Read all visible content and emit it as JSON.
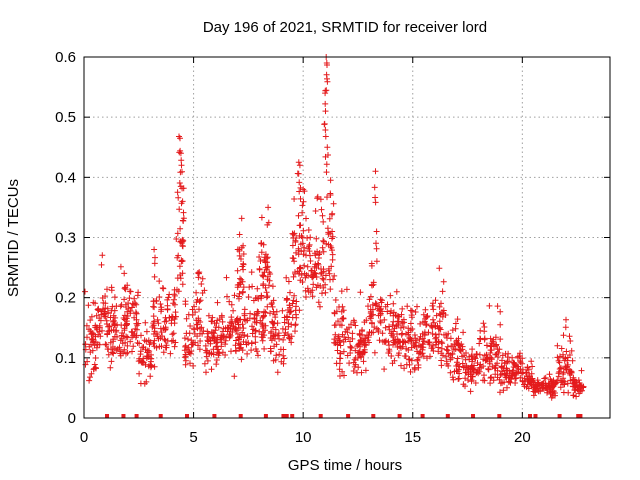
{
  "chart_data": {
    "type": "scatter",
    "title": "Day 196 of 2021, SRMTID for receiver lord",
    "xlabel": "GPS time / hours",
    "ylabel": "SRMTID / TECUs",
    "xlim": [
      0,
      24
    ],
    "ylim": [
      0,
      0.6
    ],
    "xticks": [
      "0",
      "5",
      "10",
      "15",
      "20"
    ],
    "yticks": [
      "0",
      "0.1",
      "0.2",
      "0.3",
      "0.4",
      "0.5",
      "0.6"
    ],
    "grid": true,
    "marker": "+",
    "color": "#e41a1c",
    "series": [
      {
        "name": "SRMTID",
        "segments": [
          {
            "t": [
              0.0,
              0.6
            ],
            "base": 0.12,
            "spread": 0.07
          },
          {
            "t": [
              0.5,
              1.1
            ],
            "base": 0.17,
            "spread": 0.07
          },
          {
            "t": [
              1.1,
              2.0
            ],
            "base": 0.14,
            "spread": 0.07
          },
          {
            "t": [
              1.8,
              2.5
            ],
            "base": 0.17,
            "spread": 0.07
          },
          {
            "t": [
              2.5,
              3.1
            ],
            "base": 0.1,
            "spread": 0.05
          },
          {
            "t": [
              3.1,
              3.6
            ],
            "base": 0.16,
            "spread": 0.09
          },
          {
            "t": [
              3.6,
              4.2
            ],
            "base": 0.16,
            "spread": 0.08
          },
          {
            "t": [
              4.2,
              4.6
            ],
            "base": 0.28,
            "spread": 0.11
          },
          {
            "t": [
              4.6,
              5.1
            ],
            "base": 0.13,
            "spread": 0.06
          },
          {
            "t": [
              5.1,
              5.5
            ],
            "base": 0.18,
            "spread": 0.09
          },
          {
            "t": [
              5.5,
              6.5
            ],
            "base": 0.13,
            "spread": 0.06
          },
          {
            "t": [
              6.5,
              7.5
            ],
            "base": 0.14,
            "spread": 0.07
          },
          {
            "t": [
              7.0,
              7.3
            ],
            "base": 0.24,
            "spread": 0.07
          },
          {
            "t": [
              7.5,
              8.3
            ],
            "base": 0.16,
            "spread": 0.07
          },
          {
            "t": [
              8.0,
              8.5
            ],
            "base": 0.24,
            "spread": 0.1
          },
          {
            "t": [
              8.5,
              9.2
            ],
            "base": 0.14,
            "spread": 0.07
          },
          {
            "t": [
              9.2,
              9.7
            ],
            "base": 0.17,
            "spread": 0.06
          },
          {
            "t": [
              9.5,
              10.2
            ],
            "base": 0.27,
            "spread": 0.11
          },
          {
            "t": [
              10.2,
              10.8
            ],
            "base": 0.24,
            "spread": 0.08
          },
          {
            "t": [
              10.8,
              11.4
            ],
            "base": 0.28,
            "spread": 0.14
          },
          {
            "t": [
              11.4,
              12.2
            ],
            "base": 0.13,
            "spread": 0.08
          },
          {
            "t": [
              12.2,
              13.0
            ],
            "base": 0.12,
            "spread": 0.07
          },
          {
            "t": [
              13.0,
              13.6
            ],
            "base": 0.18,
            "spread": 0.08
          },
          {
            "t": [
              13.6,
              14.6
            ],
            "base": 0.14,
            "spread": 0.07
          },
          {
            "t": [
              14.6,
              15.5
            ],
            "base": 0.12,
            "spread": 0.06
          },
          {
            "t": [
              15.5,
              16.5
            ],
            "base": 0.14,
            "spread": 0.08
          },
          {
            "t": [
              16.5,
              17.3
            ],
            "base": 0.11,
            "spread": 0.06
          },
          {
            "t": [
              17.3,
              18.0
            ],
            "base": 0.08,
            "spread": 0.04
          },
          {
            "t": [
              18.0,
              19.0
            ],
            "base": 0.1,
            "spread": 0.06
          },
          {
            "t": [
              19.0,
              20.0
            ],
            "base": 0.08,
            "spread": 0.04
          },
          {
            "t": [
              20.0,
              20.5
            ],
            "base": 0.06,
            "spread": 0.03
          },
          {
            "t": [
              20.5,
              21.5
            ],
            "base": 0.05,
            "spread": 0.02
          },
          {
            "t": [
              21.5,
              22.3
            ],
            "base": 0.08,
            "spread": 0.05
          },
          {
            "t": [
              22.3,
              22.8
            ],
            "base": 0.05,
            "spread": 0.02
          }
        ],
        "peaks": [
          {
            "t": 4.38,
            "value": 0.465
          },
          {
            "t": 4.42,
            "value": 0.44
          },
          {
            "t": 4.45,
            "value": 0.42
          },
          {
            "t": 4.5,
            "value": 0.36
          },
          {
            "t": 9.8,
            "value": 0.425
          },
          {
            "t": 9.85,
            "value": 0.42
          },
          {
            "t": 10.0,
            "value": 0.38
          },
          {
            "t": 11.05,
            "value": 0.6
          },
          {
            "t": 11.08,
            "value": 0.59
          },
          {
            "t": 11.0,
            "value": 0.54
          },
          {
            "t": 11.02,
            "value": 0.51
          },
          {
            "t": 11.1,
            "value": 0.45
          },
          {
            "t": 11.25,
            "value": 0.395
          },
          {
            "t": 13.3,
            "value": 0.41
          },
          {
            "t": 13.35,
            "value": 0.31
          },
          {
            "t": 8.4,
            "value": 0.35
          },
          {
            "t": 7.1,
            "value": 0.305
          },
          {
            "t": 3.2,
            "value": 0.28
          }
        ]
      }
    ],
    "zero_flags_hours": [
      1.05,
      1.8,
      2.4,
      3.5,
      4.7,
      5.95,
      7.15,
      8.3,
      9.1,
      9.25,
      9.5,
      10.8,
      12.05,
      13.2,
      14.4,
      15.45,
      16.6,
      17.75,
      18.95,
      20.35,
      20.6,
      21.7,
      22.55,
      22.65
    ]
  }
}
